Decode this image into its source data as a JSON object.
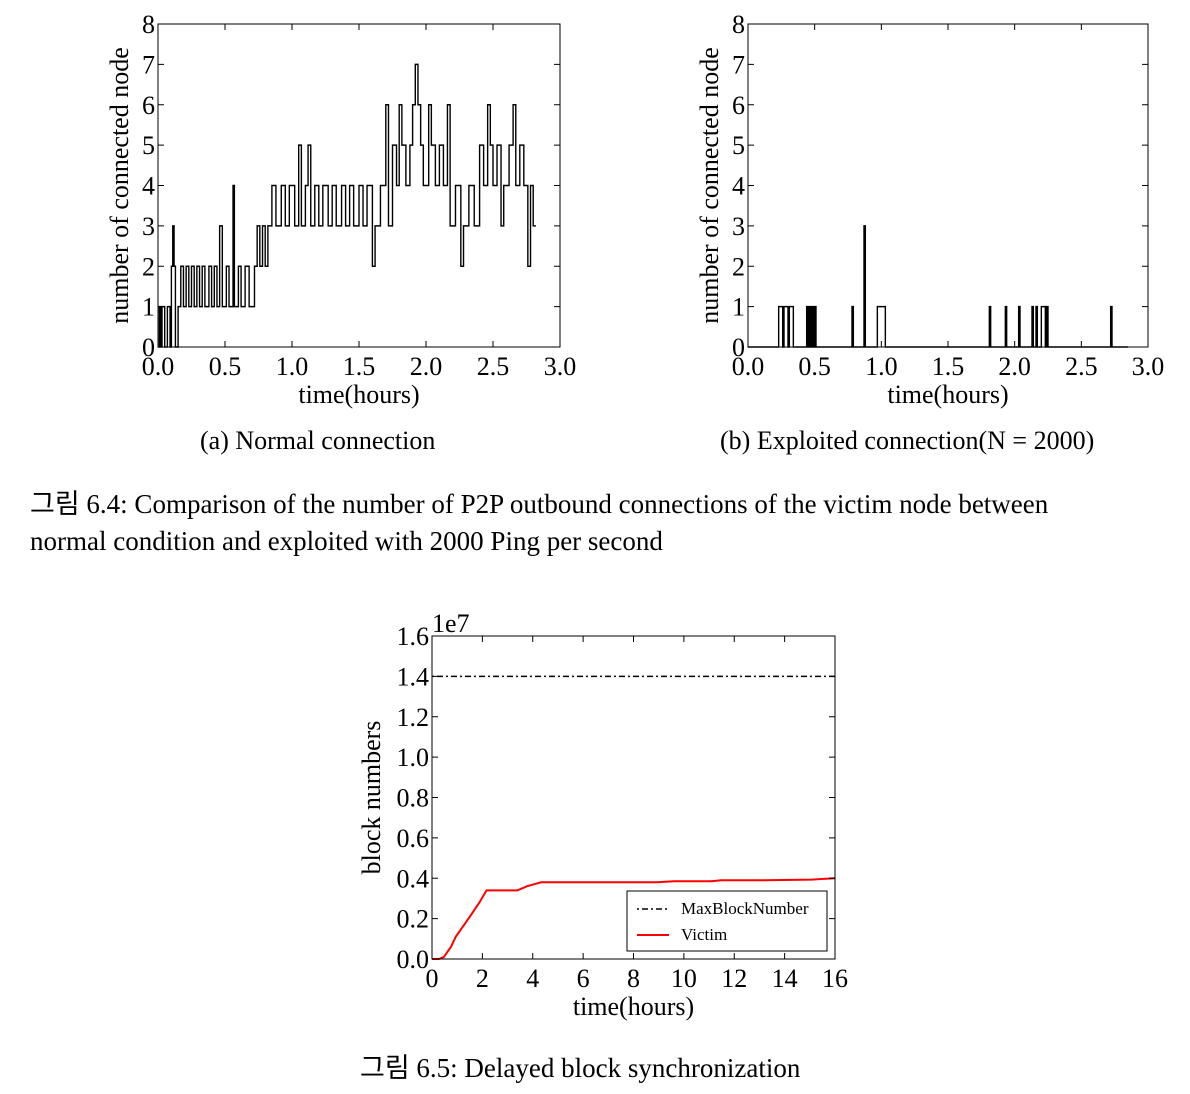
{
  "figure_6_4": {
    "subcaption_a": "(a) Normal connection",
    "subcaption_b": "(b) Exploited connection(N = 2000)",
    "caption_line1": "그림 6.4: Comparison of the number of P2P outbound connections of the victim node between",
    "caption_line2": "normal condition and exploited with 2000 Ping per second"
  },
  "figure_6_5": {
    "caption": "그림 6.5: Delayed block synchronization"
  },
  "chart_data": [
    {
      "type": "line",
      "step": true,
      "xlabel": "time(hours)",
      "ylabel": "number of connected node",
      "xlim": [
        0,
        3.0
      ],
      "ylim": [
        0,
        8
      ],
      "xticks": [
        "0.0",
        "0.5",
        "1.0",
        "1.5",
        "2.0",
        "2.5",
        "3.0"
      ],
      "yticks": [
        "0",
        "1",
        "2",
        "3",
        "4",
        "5",
        "6",
        "7",
        "8"
      ],
      "grid": false,
      "series": [
        {
          "color": "#000000",
          "points": [
            [
              0,
              0
            ],
            [
              0.01,
              1
            ],
            [
              0.02,
              0
            ],
            [
              0.03,
              1
            ],
            [
              0.05,
              0
            ],
            [
              0.07,
              1
            ],
            [
              0.09,
              0
            ],
            [
              0.1,
              2
            ],
            [
              0.11,
              3
            ],
            [
              0.12,
              2
            ],
            [
              0.13,
              0
            ],
            [
              0.15,
              1
            ],
            [
              0.17,
              2
            ],
            [
              0.19,
              1
            ],
            [
              0.21,
              2
            ],
            [
              0.23,
              1
            ],
            [
              0.25,
              2
            ],
            [
              0.27,
              1
            ],
            [
              0.29,
              2
            ],
            [
              0.31,
              1
            ],
            [
              0.33,
              2
            ],
            [
              0.35,
              1
            ],
            [
              0.38,
              2
            ],
            [
              0.4,
              1
            ],
            [
              0.42,
              2
            ],
            [
              0.44,
              1
            ],
            [
              0.46,
              3
            ],
            [
              0.48,
              1
            ],
            [
              0.51,
              2
            ],
            [
              0.53,
              1
            ],
            [
              0.56,
              4
            ],
            [
              0.57,
              1
            ],
            [
              0.6,
              2
            ],
            [
              0.62,
              1
            ],
            [
              0.65,
              2
            ],
            [
              0.68,
              1
            ],
            [
              0.72,
              2
            ],
            [
              0.74,
              3
            ],
            [
              0.76,
              2
            ],
            [
              0.78,
              3
            ],
            [
              0.8,
              2
            ],
            [
              0.82,
              3
            ],
            [
              0.85,
              4
            ],
            [
              0.88,
              3
            ],
            [
              0.92,
              4
            ],
            [
              0.95,
              3
            ],
            [
              0.98,
              4
            ],
            [
              1.02,
              3
            ],
            [
              1.05,
              5
            ],
            [
              1.07,
              3
            ],
            [
              1.1,
              4
            ],
            [
              1.12,
              5
            ],
            [
              1.14,
              3
            ],
            [
              1.17,
              4
            ],
            [
              1.2,
              3
            ],
            [
              1.23,
              4
            ],
            [
              1.27,
              3
            ],
            [
              1.3,
              4
            ],
            [
              1.33,
              3
            ],
            [
              1.37,
              4
            ],
            [
              1.4,
              3
            ],
            [
              1.43,
              4
            ],
            [
              1.46,
              3
            ],
            [
              1.5,
              4
            ],
            [
              1.53,
              3
            ],
            [
              1.56,
              4
            ],
            [
              1.6,
              2
            ],
            [
              1.62,
              3
            ],
            [
              1.66,
              4
            ],
            [
              1.7,
              6
            ],
            [
              1.72,
              3
            ],
            [
              1.75,
              5
            ],
            [
              1.78,
              4
            ],
            [
              1.8,
              6
            ],
            [
              1.82,
              5
            ],
            [
              1.85,
              4
            ],
            [
              1.88,
              5
            ],
            [
              1.9,
              6
            ],
            [
              1.92,
              7
            ],
            [
              1.94,
              6
            ],
            [
              1.96,
              5
            ],
            [
              1.98,
              4
            ],
            [
              2.02,
              6
            ],
            [
              2.04,
              5
            ],
            [
              2.07,
              4
            ],
            [
              2.1,
              5
            ],
            [
              2.13,
              4
            ],
            [
              2.16,
              6
            ],
            [
              2.18,
              3
            ],
            [
              2.22,
              4
            ],
            [
              2.26,
              2
            ],
            [
              2.28,
              3
            ],
            [
              2.32,
              4
            ],
            [
              2.36,
              3
            ],
            [
              2.4,
              5
            ],
            [
              2.43,
              4
            ],
            [
              2.46,
              6
            ],
            [
              2.48,
              5
            ],
            [
              2.5,
              4
            ],
            [
              2.53,
              5
            ],
            [
              2.56,
              3
            ],
            [
              2.58,
              4
            ],
            [
              2.62,
              5
            ],
            [
              2.65,
              6
            ],
            [
              2.67,
              4
            ],
            [
              2.7,
              5
            ],
            [
              2.73,
              4
            ],
            [
              2.76,
              2
            ],
            [
              2.78,
              4
            ],
            [
              2.8,
              3
            ],
            [
              2.82,
              3
            ]
          ]
        }
      ]
    },
    {
      "type": "line",
      "step": true,
      "xlabel": "time(hours)",
      "ylabel": "number of connected node",
      "xlim": [
        0,
        3.0
      ],
      "ylim": [
        0,
        8
      ],
      "xticks": [
        "0.0",
        "0.5",
        "1.0",
        "1.5",
        "2.0",
        "2.5",
        "3.0"
      ],
      "yticks": [
        "0",
        "1",
        "2",
        "3",
        "4",
        "5",
        "6",
        "7",
        "8"
      ],
      "grid": false,
      "series": [
        {
          "color": "#000000",
          "points": [
            [
              0,
              0
            ],
            [
              0.23,
              1
            ],
            [
              0.26,
              0
            ],
            [
              0.27,
              1
            ],
            [
              0.3,
              0
            ],
            [
              0.31,
              1
            ],
            [
              0.34,
              0
            ],
            [
              0.44,
              1
            ],
            [
              0.45,
              0
            ],
            [
              0.46,
              1
            ],
            [
              0.47,
              0
            ],
            [
              0.48,
              1
            ],
            [
              0.49,
              0
            ],
            [
              0.5,
              1
            ],
            [
              0.51,
              0
            ],
            [
              0.78,
              1
            ],
            [
              0.79,
              0
            ],
            [
              0.87,
              3
            ],
            [
              0.88,
              0
            ],
            [
              0.97,
              1
            ],
            [
              1.03,
              0
            ],
            [
              1.81,
              1
            ],
            [
              1.82,
              0
            ],
            [
              1.93,
              1
            ],
            [
              1.94,
              0
            ],
            [
              2.03,
              1
            ],
            [
              2.04,
              0
            ],
            [
              2.13,
              1
            ],
            [
              2.14,
              0
            ],
            [
              2.16,
              1
            ],
            [
              2.17,
              0
            ],
            [
              2.2,
              1
            ],
            [
              2.23,
              0
            ],
            [
              2.24,
              1
            ],
            [
              2.25,
              0
            ],
            [
              2.72,
              1
            ],
            [
              2.73,
              0
            ],
            [
              2.85,
              0
            ]
          ]
        }
      ]
    },
    {
      "type": "line",
      "xlabel": "time(hours)",
      "ylabel": "block numbers",
      "offset_text": "1e7",
      "xlim": [
        0,
        17
      ],
      "ylim": [
        0,
        1.6
      ],
      "xticks": [
        "0",
        "2",
        "4",
        "6",
        "8",
        "10",
        "12",
        "14",
        "16"
      ],
      "yticks": [
        "0.0",
        "0.2",
        "0.4",
        "0.6",
        "0.8",
        "1.0",
        "1.2",
        "1.4",
        "1.6"
      ],
      "grid": false,
      "legend": "lower right",
      "series": [
        {
          "name": "MaxBlockNumber",
          "color": "#000000",
          "style": "dotted",
          "points": [
            [
              0,
              1.4
            ],
            [
              17,
              1.4
            ]
          ]
        },
        {
          "name": "Victim",
          "color": "#ff0000",
          "style": "solid",
          "points": [
            [
              0,
              0.0
            ],
            [
              0.3,
              0.0
            ],
            [
              0.5,
              0.01
            ],
            [
              0.8,
              0.06
            ],
            [
              1.0,
              0.11
            ],
            [
              1.6,
              0.21
            ],
            [
              2.0,
              0.28
            ],
            [
              2.3,
              0.34
            ],
            [
              3.0,
              0.34
            ],
            [
              3.6,
              0.34
            ],
            [
              4.0,
              0.36
            ],
            [
              4.6,
              0.38
            ],
            [
              6.0,
              0.38
            ],
            [
              8.0,
              0.38
            ],
            [
              9.5,
              0.38
            ],
            [
              10.2,
              0.385
            ],
            [
              11.8,
              0.385
            ],
            [
              12.2,
              0.39
            ],
            [
              14.0,
              0.39
            ],
            [
              16.0,
              0.393
            ],
            [
              16.5,
              0.397
            ],
            [
              17.0,
              0.4
            ]
          ]
        }
      ]
    }
  ]
}
